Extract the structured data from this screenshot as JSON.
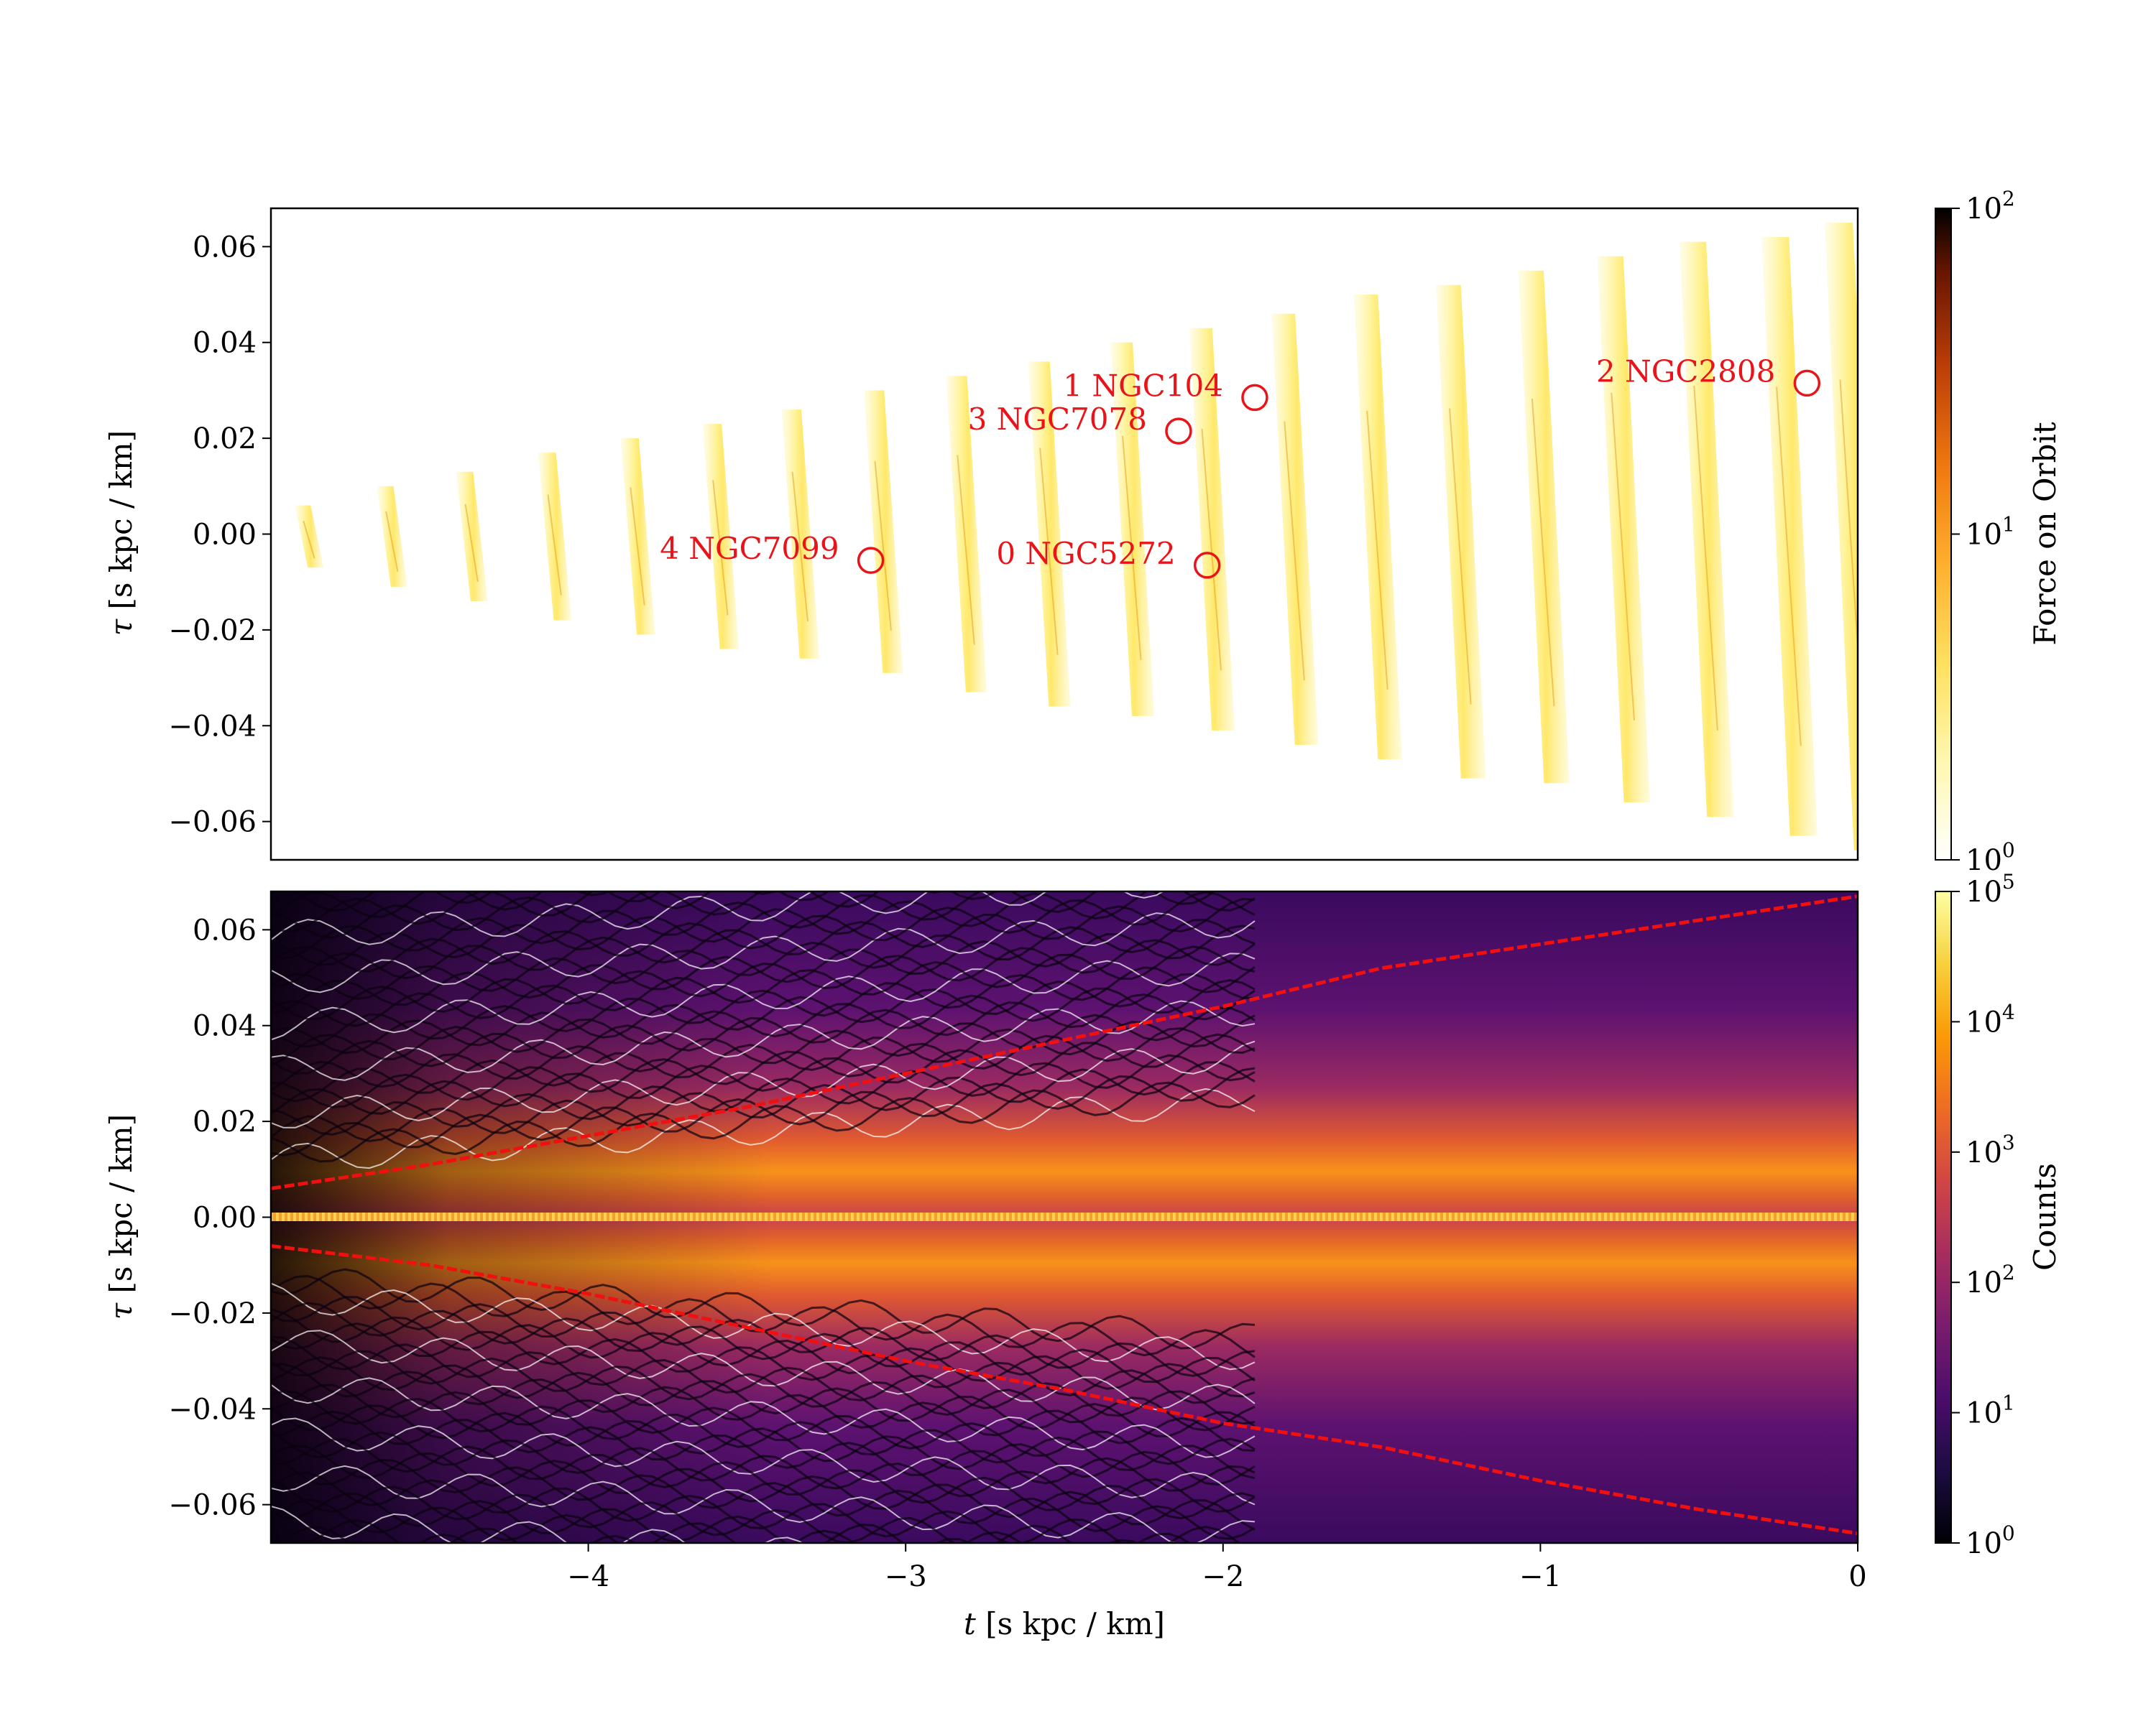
{
  "chart_data": [
    {
      "type": "heatmap",
      "panel": "top",
      "title": "",
      "xlim": [
        -5,
        0
      ],
      "ylim": [
        -0.068,
        0.068
      ],
      "yticks": [
        -0.06,
        -0.04,
        -0.02,
        0.0,
        0.02,
        0.04,
        0.06
      ],
      "ytick_labels": [
        "−0.06",
        "−0.04",
        "−0.02",
        "0.00",
        "0.02",
        "0.04",
        "0.06"
      ],
      "ylabel_symbol": "τ",
      "ylabel_units": "[s kpc / km]",
      "colorbar": {
        "label": "Force on Orbit",
        "scale": "log",
        "range": [
          1,
          100
        ],
        "tick_base": [
          "10",
          "10",
          "10"
        ],
        "tick_exp": [
          "0",
          "1",
          "2"
        ],
        "colors": [
          "#ffffff",
          "#fff7b0",
          "#ffe060",
          "#ffb030",
          "#f07a10",
          "#c04008",
          "#6a1600",
          "#000000"
        ]
      },
      "stripes": [
        {
          "t": -4.9,
          "tau_top": 0.006,
          "tau_bot": -0.007
        },
        {
          "t": -4.64,
          "tau_top": 0.01,
          "tau_bot": -0.011
        },
        {
          "t": -4.39,
          "tau_top": 0.013,
          "tau_bot": -0.014
        },
        {
          "t": -4.13,
          "tau_top": 0.017,
          "tau_bot": -0.018
        },
        {
          "t": -3.87,
          "tau_top": 0.02,
          "tau_bot": -0.021
        },
        {
          "t": -3.61,
          "tau_top": 0.023,
          "tau_bot": -0.024
        },
        {
          "t": -3.36,
          "tau_top": 0.026,
          "tau_bot": -0.026
        },
        {
          "t": -3.1,
          "tau_top": 0.03,
          "tau_bot": -0.029
        },
        {
          "t": -2.84,
          "tau_top": 0.033,
          "tau_bot": -0.033
        },
        {
          "t": -2.58,
          "tau_top": 0.036,
          "tau_bot": -0.036
        },
        {
          "t": -2.32,
          "tau_top": 0.04,
          "tau_bot": -0.038
        },
        {
          "t": -2.07,
          "tau_top": 0.043,
          "tau_bot": -0.041
        },
        {
          "t": -1.81,
          "tau_top": 0.046,
          "tau_bot": -0.044
        },
        {
          "t": -1.55,
          "tau_top": 0.05,
          "tau_bot": -0.047
        },
        {
          "t": -1.29,
          "tau_top": 0.052,
          "tau_bot": -0.051
        },
        {
          "t": -1.03,
          "tau_top": 0.055,
          "tau_bot": -0.052
        },
        {
          "t": -0.78,
          "tau_top": 0.058,
          "tau_bot": -0.056
        },
        {
          "t": -0.52,
          "tau_top": 0.061,
          "tau_bot": -0.059
        },
        {
          "t": -0.26,
          "tau_top": 0.062,
          "tau_bot": -0.063
        },
        {
          "t": -0.06,
          "tau_top": 0.065,
          "tau_bot": -0.066
        }
      ],
      "markers": [
        {
          "label": "0 NGC5272",
          "t": -2.05,
          "tau": -0.0065,
          "label_side": "left"
        },
        {
          "label": "1 NGC104",
          "t": -1.9,
          "tau": 0.0285,
          "label_side": "left"
        },
        {
          "label": "2 NGC2808",
          "t": -0.16,
          "tau": 0.0315,
          "label_side": "left"
        },
        {
          "label": "3 NGC7078",
          "t": -2.14,
          "tau": 0.0215,
          "label_side": "left"
        },
        {
          "label": "4 NGC7099",
          "t": -3.11,
          "tau": -0.0055,
          "label_side": "left"
        }
      ]
    },
    {
      "type": "heatmap",
      "panel": "bottom",
      "title": "",
      "xlim": [
        -5,
        0
      ],
      "ylim": [
        -0.068,
        0.068
      ],
      "xticks": [
        -4,
        -3,
        -2,
        -1,
        0
      ],
      "xtick_labels": [
        "−4",
        "−3",
        "−2",
        "−1",
        "0"
      ],
      "yticks": [
        -0.06,
        -0.04,
        -0.02,
        0.0,
        0.02,
        0.04,
        0.06
      ],
      "ytick_labels": [
        "−0.06",
        "−0.04",
        "−0.02",
        "0.00",
        "0.02",
        "0.04",
        "0.06"
      ],
      "xlabel_symbol": "t",
      "xlabel_units": "[s kpc / km]",
      "ylabel_symbol": "τ",
      "ylabel_units": "[s kpc / km]",
      "colorbar": {
        "label": "Counts",
        "scale": "log",
        "range": [
          1,
          100000
        ],
        "tick_base": [
          "10",
          "10",
          "10",
          "10",
          "10",
          "10"
        ],
        "tick_exp": [
          "0",
          "1",
          "2",
          "3",
          "4",
          "5"
        ],
        "colors": [
          "#000004",
          "#1b0c41",
          "#4a0c6b",
          "#781c6d",
          "#a52c60",
          "#cf4446",
          "#ed6925",
          "#fb9b06",
          "#f7d13d",
          "#fcffa4"
        ]
      },
      "envelope_upper": {
        "t": [
          -5,
          -4.5,
          -4,
          -3.5,
          -3,
          -2.5,
          -2,
          -1.5,
          -1,
          -0.5,
          0
        ],
        "tau": [
          0.006,
          0.011,
          0.017,
          0.023,
          0.03,
          0.037,
          0.044,
          0.052,
          0.057,
          0.062,
          0.067
        ]
      },
      "envelope_lower": {
        "t": [
          -5,
          -4.5,
          -4,
          -3.5,
          -3,
          -2.5,
          -2,
          -1.5,
          -1,
          -0.5,
          0
        ],
        "tau": [
          -0.006,
          -0.01,
          -0.016,
          -0.023,
          -0.03,
          -0.036,
          -0.043,
          -0.048,
          -0.055,
          -0.061,
          -0.066
        ]
      }
    }
  ]
}
